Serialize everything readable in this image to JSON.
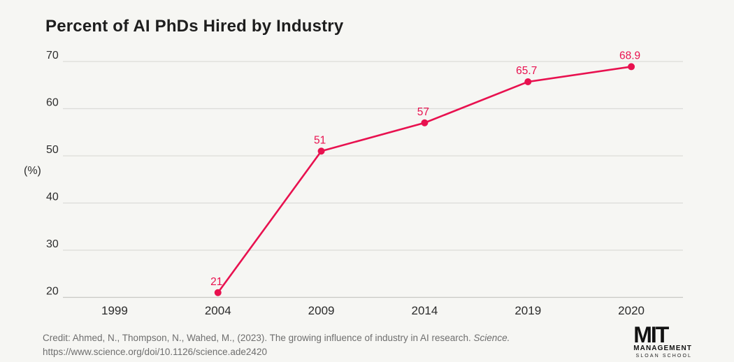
{
  "title": "Percent of AI PhDs Hired by Industry",
  "chart_data": {
    "type": "line",
    "title": "Percent of AI PhDs Hired by Industry",
    "categories": [
      "1999",
      "2004",
      "2009",
      "2014",
      "2019",
      "2020"
    ],
    "series": [
      {
        "name": "Percent of AI PhDs hired by industry",
        "values": [
          null,
          21,
          51,
          57,
          65.7,
          68.9
        ]
      }
    ],
    "point_labels": [
      "",
      "21",
      "51",
      "57",
      "65.7",
      "68.9"
    ],
    "xlabel": "",
    "ylabel": "(%)",
    "ylim": [
      20,
      70
    ],
    "yticks": [
      20,
      30,
      40,
      50,
      60,
      70
    ],
    "grid": true,
    "legend_position": "none",
    "line_color": "#e8114f",
    "gridline_color": "#dcdcd8",
    "baseline_color": "#c8c8c4",
    "tick_text_color": "#2e2e2e"
  },
  "footer": {
    "credit_line1": "Credit: Ahmed, N., Thompson, N., Wahed, M., (2023). The growing influence of industry in AI research. ",
    "credit_line1_italic": "Science.",
    "credit_line2": "https://www.science.org/doi/10.1126/science.ade2420"
  },
  "logo": {
    "line1": "MIT",
    "line2": "MANAGEMENT",
    "line3": "SLOAN SCHOOL"
  }
}
